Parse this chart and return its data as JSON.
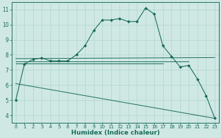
{
  "bg_color": "#cfe8e4",
  "grid_color": "#b0d5cc",
  "line_color": "#1a6b5a",
  "xlabel": "Humidex (Indice chaleur)",
  "xlim": [
    -0.5,
    23.5
  ],
  "ylim": [
    3.5,
    11.5
  ],
  "xticks": [
    0,
    1,
    2,
    3,
    4,
    5,
    6,
    7,
    8,
    9,
    10,
    11,
    12,
    13,
    14,
    15,
    16,
    17,
    18,
    19,
    20,
    21,
    22,
    23
  ],
  "yticks": [
    4,
    5,
    6,
    7,
    8,
    9,
    10,
    11
  ],
  "series": [
    {
      "x": [
        0,
        1,
        2,
        3,
        4,
        5,
        6,
        7,
        8,
        9,
        10,
        11,
        12,
        13,
        14,
        15,
        16,
        17,
        18,
        19,
        20,
        21,
        22,
        23
      ],
      "y": [
        5.0,
        7.4,
        7.7,
        7.8,
        7.6,
        7.6,
        7.6,
        8.0,
        8.6,
        9.6,
        10.3,
        10.3,
        10.4,
        10.2,
        10.2,
        11.1,
        10.7,
        8.6,
        7.9,
        7.2,
        7.3,
        6.4,
        5.3,
        3.8
      ],
      "marker": "D",
      "linewidth": 0.8,
      "markersize": 2.0
    },
    {
      "x": [
        0,
        23
      ],
      "y": [
        7.75,
        7.82
      ],
      "marker": null,
      "linewidth": 0.7
    },
    {
      "x": [
        0,
        20
      ],
      "y": [
        7.58,
        7.58
      ],
      "marker": null,
      "linewidth": 0.7
    },
    {
      "x": [
        0,
        17
      ],
      "y": [
        7.42,
        7.42
      ],
      "marker": null,
      "linewidth": 0.7
    },
    {
      "x": [
        0,
        23
      ],
      "y": [
        6.1,
        3.8
      ],
      "marker": null,
      "linewidth": 0.7
    }
  ],
  "xlabel_fontsize": 6.5,
  "xlabel_fontweight": "bold",
  "tick_fontsize": 5.0,
  "ytick_fontsize": 5.5
}
